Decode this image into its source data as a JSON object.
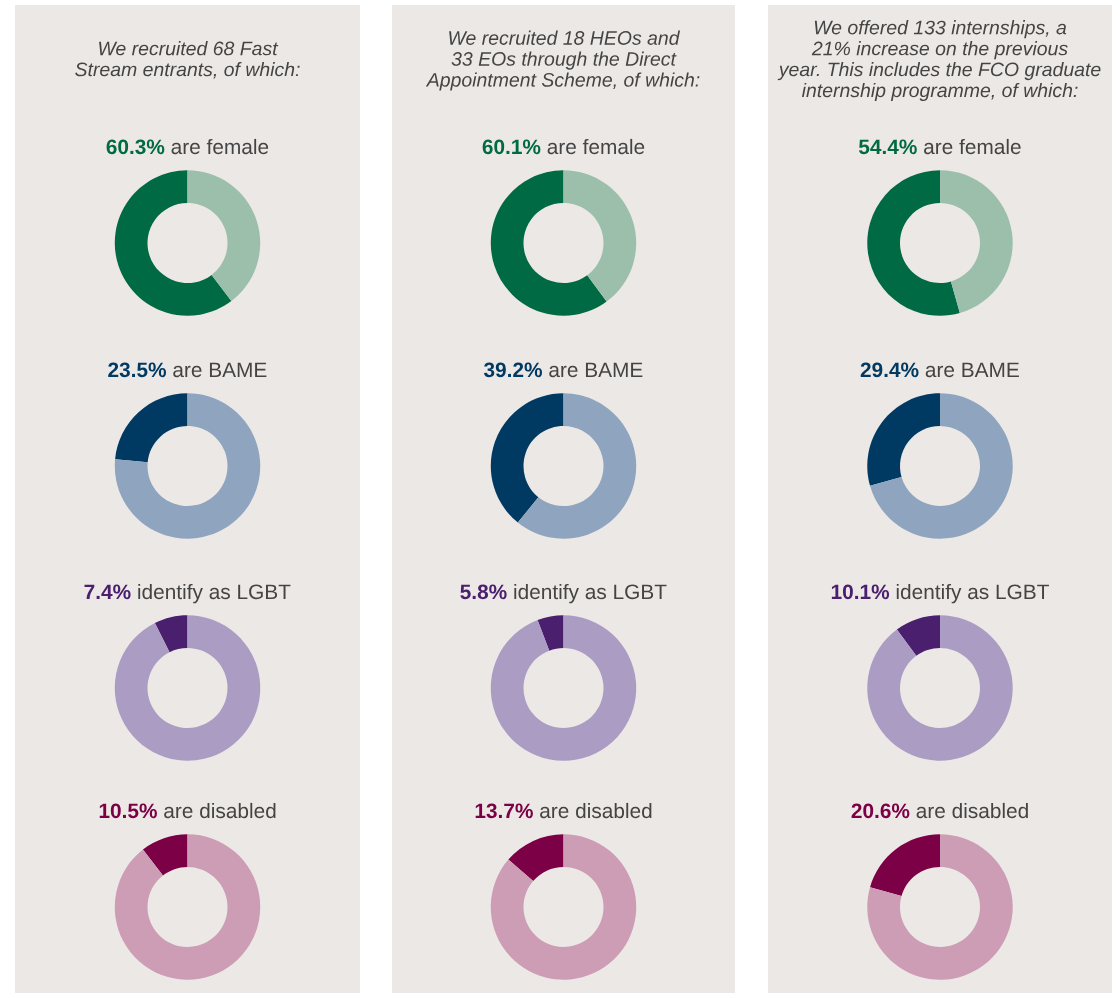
{
  "chart_data": [
    {
      "type": "donut",
      "title": "60.3% are female",
      "annotations": [
        "We recruited 68 Fast\nStream entrants, of which:"
      ],
      "categories": [
        null,
        null
      ],
      "values": [
        60.3,
        39.7
      ],
      "colors": [
        "#006a44",
        "#9bbfaa"
      ]
    },
    {
      "type": "donut",
      "title": "60.1% are female",
      "annotations": [
        "We recruited 18 HEOs and\n33 EOs through the Direct\nAppointment Scheme, of which:"
      ],
      "categories": [
        null,
        null
      ],
      "values": [
        60.1,
        39.9
      ],
      "colors": [
        "#006a44",
        "#9bbfaa"
      ]
    },
    {
      "type": "donut",
      "title": "54.4% are female",
      "annotations": [
        "We offered 133 internships, a\n21% increase on the previous\nyear. This includes the FCO graduate\ninternship programme, of which:"
      ],
      "categories": [
        null,
        null
      ],
      "values": [
        54.4,
        45.6
      ],
      "colors": [
        "#006a44",
        "#9bbfaa"
      ]
    },
    {
      "type": "donut",
      "title": "23.5% are BAME",
      "categories": [
        null,
        null
      ],
      "values": [
        23.5,
        76.5
      ],
      "colors": [
        "#003a63",
        "#8fa4bf"
      ]
    },
    {
      "type": "donut",
      "title": "39.2% are BAME",
      "categories": [
        null,
        null
      ],
      "values": [
        39.2,
        60.8
      ],
      "colors": [
        "#003a63",
        "#8fa4bf"
      ]
    },
    {
      "type": "donut",
      "title": "29.4% are BAME",
      "categories": [
        null,
        null
      ],
      "values": [
        29.4,
        70.6
      ],
      "colors": [
        "#003a63",
        "#8fa4bf"
      ]
    },
    {
      "type": "donut",
      "title": "7.4% identify as LGBT",
      "categories": [
        null,
        null
      ],
      "values": [
        7.4,
        92.6
      ],
      "colors": [
        "#4a1f6e",
        "#ab9cc4"
      ]
    },
    {
      "type": "donut",
      "title": "5.8% identify as LGBT",
      "categories": [
        null,
        null
      ],
      "values": [
        5.8,
        94.2
      ],
      "colors": [
        "#4a1f6e",
        "#ab9cc4"
      ]
    },
    {
      "type": "donut",
      "title": "10.1% identify as LGBT",
      "categories": [
        null,
        null
      ],
      "values": [
        10.1,
        89.9
      ],
      "colors": [
        "#4a1f6e",
        "#ab9cc4"
      ]
    },
    {
      "type": "donut",
      "title": "10.5% are disabled",
      "categories": [
        null,
        null
      ],
      "values": [
        10.5,
        89.5
      ],
      "colors": [
        "#7c0046",
        "#cc9db4"
      ]
    },
    {
      "type": "donut",
      "title": "13.7% are disabled",
      "categories": [
        null,
        null
      ],
      "values": [
        13.7,
        86.3
      ],
      "colors": [
        "#7c0046",
        "#cc9db4"
      ]
    },
    {
      "type": "donut",
      "title": "20.6% are disabled",
      "categories": [
        null,
        null
      ],
      "values": [
        20.6,
        79.4
      ],
      "colors": [
        "#7c0046",
        "#cc9db4"
      ]
    }
  ]
}
